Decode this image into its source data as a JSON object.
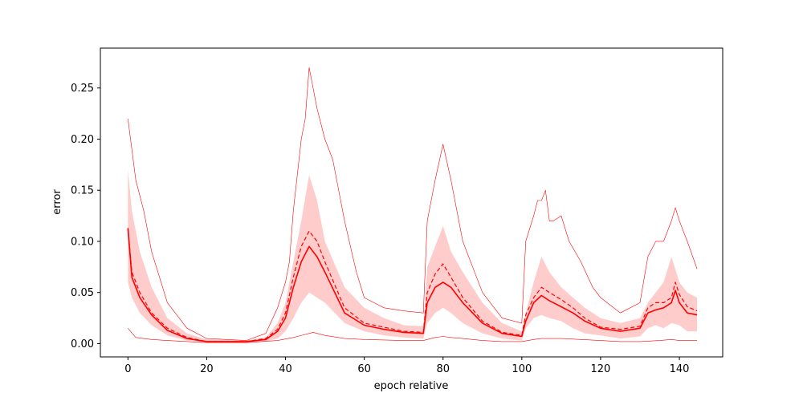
{
  "chart_data": {
    "type": "line",
    "title": "",
    "xlabel": "epoch relative",
    "ylabel": "error",
    "xlim": [
      -7,
      151
    ],
    "ylim": [
      -0.013,
      0.289
    ],
    "xticks": [
      0,
      20,
      40,
      60,
      80,
      100,
      120,
      140
    ],
    "xtick_labels": [
      "0",
      "20",
      "40",
      "60",
      "80",
      "100",
      "120",
      "140"
    ],
    "yticks": [
      0.0,
      0.05,
      0.1,
      0.15,
      0.2,
      0.25
    ],
    "ytick_labels": [
      "0.00",
      "0.05",
      "0.10",
      "0.15",
      "0.20",
      "0.25"
    ],
    "grid": false,
    "colors": {
      "line": "#ff0000",
      "band": "#ffcccc"
    },
    "band": {
      "x": [
        0,
        1,
        3,
        6,
        10,
        15,
        20,
        30,
        35,
        38,
        40,
        42,
        44,
        46,
        48,
        50,
        55,
        60,
        65,
        70,
        75,
        76,
        78,
        80,
        82,
        85,
        90,
        95,
        100,
        101,
        103,
        105,
        107,
        110,
        113,
        116,
        120,
        125,
        130,
        132,
        134,
        136,
        138,
        140,
        142,
        144.5
      ],
      "lower": [
        0.06,
        0.045,
        0.03,
        0.018,
        0.008,
        0.003,
        0.001,
        0.001,
        0.002,
        0.005,
        0.012,
        0.025,
        0.04,
        0.05,
        0.045,
        0.04,
        0.02,
        0.012,
        0.008,
        0.006,
        0.005,
        0.02,
        0.03,
        0.035,
        0.03,
        0.02,
        0.01,
        0.005,
        0.003,
        0.015,
        0.025,
        0.028,
        0.025,
        0.022,
        0.015,
        0.01,
        0.008,
        0.005,
        0.007,
        0.015,
        0.018,
        0.015,
        0.02,
        0.018,
        0.012,
        0.012
      ],
      "upper": [
        0.17,
        0.13,
        0.09,
        0.055,
        0.025,
        0.01,
        0.004,
        0.003,
        0.006,
        0.02,
        0.04,
        0.08,
        0.12,
        0.165,
        0.14,
        0.1,
        0.055,
        0.035,
        0.025,
        0.018,
        0.017,
        0.075,
        0.095,
        0.115,
        0.09,
        0.07,
        0.04,
        0.02,
        0.012,
        0.03,
        0.06,
        0.085,
        0.07,
        0.055,
        0.045,
        0.035,
        0.025,
        0.02,
        0.025,
        0.04,
        0.05,
        0.06,
        0.085,
        0.06,
        0.05,
        0.045
      ]
    },
    "series": [
      {
        "style": "solid",
        "x": [
          0,
          1,
          3,
          6,
          10,
          15,
          20,
          30,
          35,
          38,
          40,
          42,
          44,
          46,
          48,
          50,
          55,
          60,
          65,
          70,
          75,
          76,
          78,
          80,
          82,
          85,
          90,
          95,
          100,
          101,
          103,
          105,
          107,
          110,
          113,
          116,
          120,
          125,
          130,
          132,
          134,
          136,
          138,
          139,
          140,
          142,
          144.5
        ],
        "values": [
          0.113,
          0.065,
          0.045,
          0.028,
          0.013,
          0.005,
          0.002,
          0.002,
          0.004,
          0.012,
          0.025,
          0.055,
          0.08,
          0.095,
          0.085,
          0.07,
          0.03,
          0.018,
          0.014,
          0.011,
          0.01,
          0.04,
          0.055,
          0.06,
          0.055,
          0.04,
          0.02,
          0.01,
          0.007,
          0.022,
          0.04,
          0.047,
          0.042,
          0.036,
          0.03,
          0.022,
          0.015,
          0.012,
          0.015,
          0.03,
          0.033,
          0.035,
          0.04,
          0.052,
          0.04,
          0.03,
          0.028
        ]
      },
      {
        "style": "dashed",
        "x": [
          0,
          1,
          3,
          6,
          10,
          15,
          20,
          30,
          35,
          38,
          40,
          42,
          44,
          46,
          48,
          50,
          55,
          60,
          65,
          70,
          75,
          76,
          78,
          80,
          82,
          85,
          90,
          95,
          100,
          101,
          103,
          105,
          107,
          110,
          113,
          116,
          120,
          125,
          130,
          132,
          134,
          136,
          138,
          139,
          140,
          142,
          144.5
        ],
        "values": [
          0.113,
          0.07,
          0.05,
          0.03,
          0.015,
          0.006,
          0.002,
          0.002,
          0.005,
          0.014,
          0.03,
          0.065,
          0.095,
          0.11,
          0.1,
          0.08,
          0.035,
          0.02,
          0.016,
          0.012,
          0.011,
          0.05,
          0.068,
          0.078,
          0.065,
          0.045,
          0.022,
          0.011,
          0.008,
          0.028,
          0.045,
          0.055,
          0.05,
          0.043,
          0.035,
          0.025,
          0.016,
          0.014,
          0.017,
          0.035,
          0.04,
          0.04,
          0.045,
          0.06,
          0.048,
          0.036,
          0.032
        ]
      },
      {
        "style": "thin",
        "x": [
          0,
          1,
          2,
          4,
          6,
          10,
          15,
          20,
          30,
          35,
          38,
          40,
          41,
          42,
          44,
          45,
          46,
          47,
          48,
          50,
          52,
          55,
          58,
          60,
          65,
          70,
          75,
          76,
          78,
          80,
          82,
          85,
          88,
          90,
          95,
          100,
          101,
          103,
          104,
          105,
          106,
          107,
          108,
          110,
          112,
          115,
          118,
          120,
          125,
          130,
          132,
          134,
          136,
          138,
          139,
          140,
          142,
          144.5
        ],
        "values": [
          0.22,
          0.19,
          0.16,
          0.13,
          0.09,
          0.04,
          0.015,
          0.005,
          0.003,
          0.01,
          0.035,
          0.06,
          0.08,
          0.13,
          0.2,
          0.22,
          0.27,
          0.25,
          0.23,
          0.2,
          0.18,
          0.12,
          0.07,
          0.045,
          0.035,
          0.032,
          0.03,
          0.12,
          0.16,
          0.195,
          0.16,
          0.1,
          0.07,
          0.05,
          0.025,
          0.02,
          0.1,
          0.125,
          0.14,
          0.14,
          0.15,
          0.12,
          0.12,
          0.125,
          0.1,
          0.08,
          0.055,
          0.045,
          0.03,
          0.04,
          0.085,
          0.1,
          0.1,
          0.12,
          0.133,
          0.12,
          0.1,
          0.073
        ]
      },
      {
        "style": "thin",
        "x": [
          0,
          2,
          6,
          10,
          20,
          30,
          38,
          42,
          45,
          47,
          50,
          55,
          60,
          70,
          75,
          78,
          80,
          82,
          85,
          90,
          95,
          100,
          103,
          105,
          110,
          115,
          120,
          125,
          130,
          135,
          138,
          140,
          144.5
        ],
        "values": [
          0.015,
          0.006,
          0.004,
          0.003,
          0.001,
          0.001,
          0.003,
          0.006,
          0.009,
          0.011,
          0.008,
          0.005,
          0.004,
          0.003,
          0.003,
          0.006,
          0.007,
          0.006,
          0.005,
          0.003,
          0.002,
          0.002,
          0.004,
          0.005,
          0.005,
          0.004,
          0.003,
          0.002,
          0.002,
          0.003,
          0.004,
          0.003,
          0.003
        ]
      }
    ]
  }
}
